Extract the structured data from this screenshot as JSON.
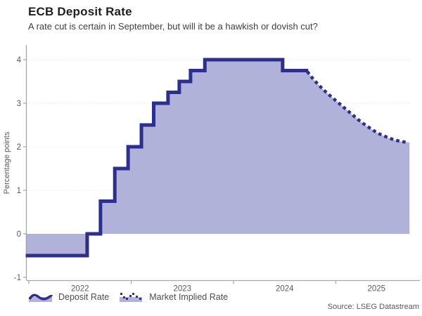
{
  "header": {
    "title": "ECB Deposit Rate",
    "subtitle": "A rate cut is certain in September, but will it be a hawkish or dovish cut?"
  },
  "colors": {
    "line": "#2d2f8e",
    "fill": "#b1b2d9",
    "axis": "#a6a6a6",
    "grid": "#e2e2e2",
    "title_text": "#1f1f1f",
    "subtitle_text": "#3d3d3d",
    "tick_text": "#595959",
    "source_text": "#595959"
  },
  "legend": {
    "items": [
      {
        "label": "Deposit Rate",
        "icon": "solid-wave-swatch"
      },
      {
        "label": "Market Implied Rate",
        "icon": "dotted-wave-swatch"
      }
    ]
  },
  "source": "Source: LSEG Datastream",
  "chart_data": {
    "type": "area",
    "title": "ECB Deposit Rate",
    "subtitle": "A rate cut is certain in September, but will it be a hawkish or dovish cut?",
    "xlabel": "",
    "ylabel": "Percentage points",
    "x_unit": "year",
    "xlim": [
      2021.97,
      2025.74
    ],
    "ylim": [
      -1.07,
      4.33
    ],
    "baseline": 0,
    "grid": true,
    "legend_position": "bottom",
    "y_ticks": [
      {
        "v": -1,
        "label": "-1",
        "grid": false
      },
      {
        "v": 0,
        "label": "0",
        "grid": true
      },
      {
        "v": 1,
        "label": "1",
        "grid": true
      },
      {
        "v": 2,
        "label": "2",
        "grid": true
      },
      {
        "v": 3,
        "label": "3",
        "grid": true
      },
      {
        "v": 4,
        "label": "4",
        "grid": true
      }
    ],
    "x_ticks": [
      {
        "t": 2022,
        "label": "2022"
      },
      {
        "t": 2023,
        "label": "2023"
      },
      {
        "t": 2024,
        "label": "2024"
      },
      {
        "t": 2025,
        "label": "2025"
      }
    ],
    "series": [
      {
        "name": "Deposit Rate",
        "style": "step-solid",
        "points": [
          [
            2021.97,
            -0.5
          ],
          [
            2022.57,
            0
          ],
          [
            2022.7,
            0.75
          ],
          [
            2022.84,
            1.5
          ],
          [
            2022.97,
            2.0
          ],
          [
            2023.1,
            2.5
          ],
          [
            2023.22,
            3.0
          ],
          [
            2023.36,
            3.25
          ],
          [
            2023.47,
            3.5
          ],
          [
            2023.58,
            3.75
          ],
          [
            2023.72,
            4.0
          ],
          [
            2024.48,
            3.75
          ],
          [
            2024.73,
            3.75
          ]
        ]
      },
      {
        "name": "Market Implied Rate",
        "style": "dotted",
        "points": [
          [
            2024.73,
            3.7
          ],
          [
            2024.78,
            3.55
          ],
          [
            2024.82,
            3.45
          ],
          [
            2024.87,
            3.33
          ],
          [
            2024.92,
            3.22
          ],
          [
            2024.97,
            3.12
          ],
          [
            2025.02,
            3.02
          ],
          [
            2025.07,
            2.92
          ],
          [
            2025.12,
            2.82
          ],
          [
            2025.17,
            2.72
          ],
          [
            2025.22,
            2.62
          ],
          [
            2025.27,
            2.53
          ],
          [
            2025.32,
            2.45
          ],
          [
            2025.37,
            2.37
          ],
          [
            2025.42,
            2.3
          ],
          [
            2025.47,
            2.25
          ],
          [
            2025.52,
            2.2
          ],
          [
            2025.57,
            2.16
          ],
          [
            2025.62,
            2.13
          ],
          [
            2025.67,
            2.11
          ],
          [
            2025.72,
            2.1
          ]
        ]
      }
    ]
  }
}
